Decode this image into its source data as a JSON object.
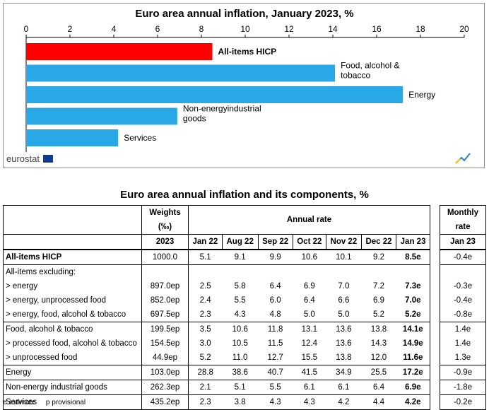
{
  "chart_data": {
    "type": "bar",
    "orientation": "horizontal",
    "title": "Euro area annual inflation,  January 2023, %",
    "xlim": [
      0,
      20
    ],
    "xticks": [
      0,
      2,
      4,
      6,
      8,
      10,
      12,
      14,
      16,
      18,
      20
    ],
    "categories": [
      "All-items HICP",
      "Food, alcohol & tobacco",
      "Energy",
      "Non-energy industrial goods",
      "Services"
    ],
    "display_labels": [
      [
        "All-items HICP"
      ],
      [
        "Food, alcohol &",
        "tobacco"
      ],
      [
        "Energy"
      ],
      [
        "Non-energyindustrial",
        "goods"
      ],
      [
        "Services"
      ]
    ],
    "values": [
      8.5,
      14.1,
      17.2,
      6.9,
      4.2
    ],
    "colors": [
      "#ff0000",
      "#29a8e8",
      "#29a8e8",
      "#29a8e8",
      "#29a8e8"
    ],
    "label_bold": [
      true,
      false,
      false,
      false,
      false
    ],
    "grid": false
  },
  "branding": {
    "logo": "eurostat"
  },
  "table": {
    "title": "Euro area annual inflation and its components, %",
    "weights_header": "Weights",
    "weights_unit": "(‰)",
    "annual_header": "Annual rate",
    "monthly_header": [
      "Monthly",
      "rate"
    ],
    "columns": [
      "2023",
      "Jan 22",
      "Aug 22",
      "Sep 22",
      "Oct 22",
      "Nov 22",
      "Dec 22",
      "Jan 23"
    ],
    "monthly_column": "Jan 23",
    "rows": [
      {
        "label": "All-items HICP",
        "bold": true,
        "group_start": true,
        "values": [
          "1000.0",
          "5.1",
          "9.1",
          "9.9",
          "10.6",
          "10.1",
          "9.2",
          "8.5e"
        ],
        "monthly": "-0.4e"
      },
      {
        "label": "All-items excluding:",
        "subheader": true,
        "group_start": true,
        "values": [
          "",
          "",
          "",
          "",
          "",
          "",
          "",
          ""
        ],
        "monthly": ""
      },
      {
        "label": "> energy",
        "values": [
          "897.0ep",
          "2.5",
          "5.8",
          "6.4",
          "6.9",
          "7.0",
          "7.2",
          "7.3e"
        ],
        "monthly": "-0.3e"
      },
      {
        "label": "> energy, unprocessed food",
        "values": [
          "852.0ep",
          "2.4",
          "5.5",
          "6.0",
          "6.4",
          "6.6",
          "6.9",
          "7.0e"
        ],
        "monthly": "-0.4e"
      },
      {
        "label": "> energy, food, alcohol & tobacco",
        "values": [
          "697.5ep",
          "2.3",
          "4.3",
          "4.8",
          "5.0",
          "5.0",
          "5.2",
          "5.2e"
        ],
        "monthly": "-0.8e"
      },
      {
        "label": "Food, alcohol & tobacco",
        "group_start": true,
        "values": [
          "199.5ep",
          "3.5",
          "10.6",
          "11.8",
          "13.1",
          "13.6",
          "13.8",
          "14.1e"
        ],
        "monthly": "1.4e"
      },
      {
        "label": "> processed food, alcohol & tobacco",
        "values": [
          "154.5ep",
          "3.0",
          "10.5",
          "11.5",
          "12.4",
          "13.6",
          "14.3",
          "14.9e"
        ],
        "monthly": "1.4e"
      },
      {
        "label": "> unprocessed food",
        "values": [
          "44.9ep",
          "5.2",
          "11.0",
          "12.7",
          "15.5",
          "13.8",
          "12.0",
          "11.6e"
        ],
        "monthly": "1.3e"
      },
      {
        "label": "Energy",
        "group_start": true,
        "values": [
          "103.0ep",
          "28.8",
          "38.6",
          "40.7",
          "41.5",
          "34.9",
          "25.5",
          "17.2e"
        ],
        "monthly": "-0.9e"
      },
      {
        "label": "Non-energy industrial goods",
        "group_start": true,
        "values": [
          "262.3ep",
          "2.1",
          "5.1",
          "5.5",
          "6.1",
          "6.1",
          "6.4",
          "6.9e"
        ],
        "monthly": "-1.8e"
      },
      {
        "label": "Services",
        "group_start": true,
        "values": [
          "435.2ep",
          "2.3",
          "3.8",
          "4.3",
          "4.3",
          "4.2",
          "4.4",
          "4.2e"
        ],
        "monthly": "-0.2e"
      }
    ]
  },
  "footnote": {
    "estimate": "e estimate",
    "provisional": "p provisional"
  }
}
